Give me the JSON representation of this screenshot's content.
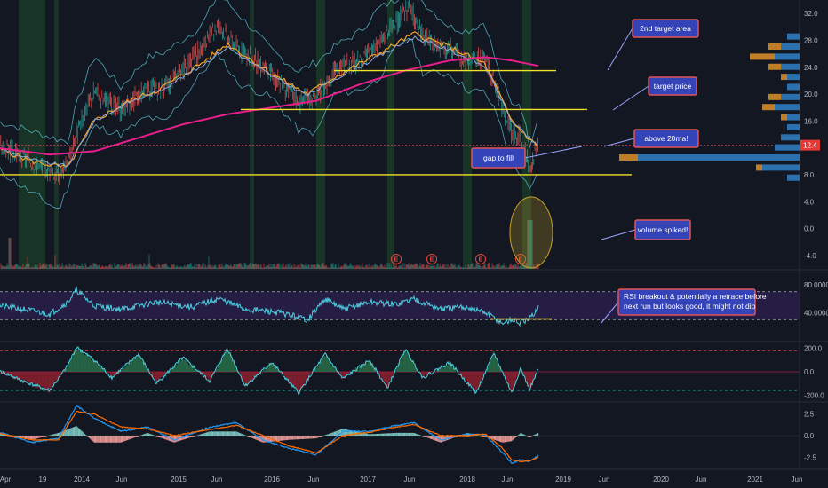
{
  "chart_data": {
    "type": "line",
    "title": "",
    "time_axis": [
      "Apr",
      "19",
      "2014",
      "Jun",
      "2015",
      "Jun",
      "2016",
      "Jun",
      "2017",
      "Jun",
      "2018",
      "Jun",
      "2019",
      "Jun",
      "2020",
      "Jun",
      "2021",
      "Jun"
    ],
    "price_axis": {
      "ticks": [
        "32.0",
        "28.0",
        "24.0",
        "20.0",
        "16.0",
        "8.0",
        "4.0",
        "0.0",
        "-4.0"
      ],
      "range": [
        -6,
        34
      ],
      "current_price": "12.4",
      "current_value": 12.4
    },
    "price_series": {
      "years": [
        2013.2,
        2013.5,
        2013.9,
        2014.0,
        2014.1,
        2014.3,
        2014.6,
        2014.9,
        2015.1,
        2015.5,
        2015.7,
        2015.9,
        2016.3,
        2016.6,
        2016.8,
        2017.0,
        2017.3,
        2017.5,
        2017.7,
        2017.85,
        2018.0,
        2018.3,
        2018.5,
        2018.7,
        2018.85,
        2019.0,
        2019.1,
        2019.2,
        2019.3
      ],
      "values": [
        12.5,
        10.5,
        8.0,
        9.5,
        14.0,
        20.5,
        17.5,
        21.0,
        21.0,
        26.5,
        30.5,
        27.0,
        23.0,
        19.0,
        19.5,
        23.5,
        25.0,
        27.5,
        30.5,
        33.0,
        28.5,
        26.5,
        25.0,
        25.5,
        20.0,
        14.0,
        13.5,
        9.0,
        12.5
      ]
    },
    "ma20_series": {
      "years": [
        2013.2,
        2013.6,
        2014.0,
        2014.3,
        2014.7,
        2015.0,
        2015.5,
        2015.8,
        2016.3,
        2016.7,
        2017.0,
        2017.5,
        2017.9,
        2018.3,
        2018.7,
        2019.0,
        2019.3
      ],
      "values": [
        12.0,
        10.0,
        9.0,
        16.0,
        19.0,
        20.5,
        24.5,
        27.5,
        23.0,
        20.0,
        22.5,
        26.0,
        29.0,
        27.0,
        24.5,
        16.0,
        12.0
      ]
    },
    "ma200_series": {
      "years": [
        2013.2,
        2013.8,
        2014.3,
        2014.8,
        2015.3,
        2015.8,
        2016.3,
        2016.8,
        2017.3,
        2017.8,
        2018.3,
        2018.7,
        2019.0,
        2019.3
      ],
      "values": [
        12.0,
        11.0,
        11.5,
        13.5,
        15.5,
        17.0,
        18.0,
        19.0,
        21.5,
        23.5,
        25.0,
        25.5,
        25.0,
        24.2
      ]
    },
    "horizontal_levels": [
      {
        "value": 23.5,
        "start": 2017.0,
        "end": 2019.5
      },
      {
        "value": 17.7,
        "start": 2015.95,
        "end": 2019.85
      },
      {
        "value": 8.0,
        "start": 2013.2,
        "end": 2020.35
      }
    ],
    "earnings_label": "E",
    "earnings_years": [
      2017.7,
      2018.1,
      2018.65,
      2019.1
    ],
    "volume_profile": {
      "prices": [
        28.5,
        27.0,
        25.5,
        24.0,
        22.5,
        21.0,
        19.5,
        18.0,
        16.5,
        15.0,
        13.5,
        12.0,
        10.5,
        9.0,
        7.5
      ],
      "blue": [
        2,
        3,
        4,
        3,
        2,
        2,
        3,
        4,
        2,
        2,
        3,
        4,
        26,
        6,
        2
      ],
      "orange": [
        0,
        2,
        4,
        2,
        1,
        0,
        2,
        2,
        1,
        0,
        0,
        0,
        3,
        1,
        0
      ]
    },
    "rsi": {
      "ticks": [
        "80.0000",
        "40.0000"
      ],
      "upper_band": 70,
      "lower_band": 30,
      "years": [
        2013.2,
        2013.5,
        2013.8,
        2014.0,
        2014.1,
        2014.3,
        2014.6,
        2015.0,
        2015.4,
        2015.7,
        2016.0,
        2016.4,
        2016.7,
        2016.9,
        2017.1,
        2017.4,
        2017.7,
        2017.9,
        2018.2,
        2018.5,
        2018.7,
        2018.9,
        2019.0,
        2019.1,
        2019.2,
        2019.3
      ],
      "values": [
        50,
        45,
        38,
        55,
        72,
        50,
        45,
        55,
        48,
        60,
        45,
        40,
        30,
        60,
        45,
        55,
        52,
        60,
        45,
        48,
        40,
        25,
        30,
        25,
        30,
        48
      ],
      "trend_level": 31
    },
    "cci": {
      "ticks": [
        "200.0",
        "0.0",
        "-200.0"
      ],
      "upper_band": 180,
      "lower_band": -160,
      "years": [
        2013.2,
        2013.5,
        2013.8,
        2014.0,
        2014.1,
        2014.3,
        2014.5,
        2014.8,
        2015.0,
        2015.3,
        2015.6,
        2015.8,
        2016.0,
        2016.3,
        2016.6,
        2016.9,
        2017.1,
        2017.4,
        2017.6,
        2017.8,
        2018.0,
        2018.3,
        2018.6,
        2018.8,
        2019.0,
        2019.1,
        2019.2,
        2019.3
      ],
      "values": [
        20,
        -80,
        -160,
        50,
        210,
        100,
        -50,
        150,
        -100,
        120,
        -80,
        200,
        -120,
        80,
        -180,
        150,
        -60,
        100,
        -140,
        190,
        -50,
        80,
        -180,
        160,
        -180,
        30,
        -150,
        20
      ]
    },
    "macd": {
      "ticks": [
        "2.5",
        "0.0",
        "-2.5"
      ],
      "years": [
        2013.2,
        2013.6,
        2013.9,
        2014.1,
        2014.3,
        2014.6,
        2014.9,
        2015.2,
        2015.6,
        2015.9,
        2016.2,
        2016.5,
        2016.8,
        2017.1,
        2017.4,
        2017.7,
        2017.9,
        2018.2,
        2018.5,
        2018.7,
        2018.9,
        2019.0,
        2019.1,
        2019.2,
        2019.3
      ],
      "macd": [
        0.5,
        -0.8,
        -0.3,
        3.5,
        2.0,
        0.5,
        1.0,
        -0.5,
        1.0,
        1.5,
        -0.5,
        -1.5,
        -2.2,
        0.5,
        0.5,
        1.2,
        1.5,
        -0.5,
        0.2,
        0.1,
        -2.0,
        -3.2,
        -2.8,
        -3.0,
        -2.3
      ],
      "signal": [
        0.3,
        -0.5,
        -0.5,
        2.8,
        2.5,
        1.0,
        0.8,
        0.0,
        0.7,
        1.2,
        0.0,
        -1.2,
        -2.0,
        0.0,
        0.4,
        1.0,
        1.3,
        0.0,
        0.0,
        0.2,
        -1.5,
        -2.8,
        -3.0,
        -2.9,
        -2.5
      ]
    },
    "annotations": [
      {
        "text": "2nd target area"
      },
      {
        "text": "target price"
      },
      {
        "text": "above 20ma!"
      },
      {
        "text": "gap to fill"
      },
      {
        "text": "volume spiked!"
      },
      {
        "text": "RSI breakout & potentially a retrace before next run but looks good, it might not dip"
      }
    ]
  }
}
